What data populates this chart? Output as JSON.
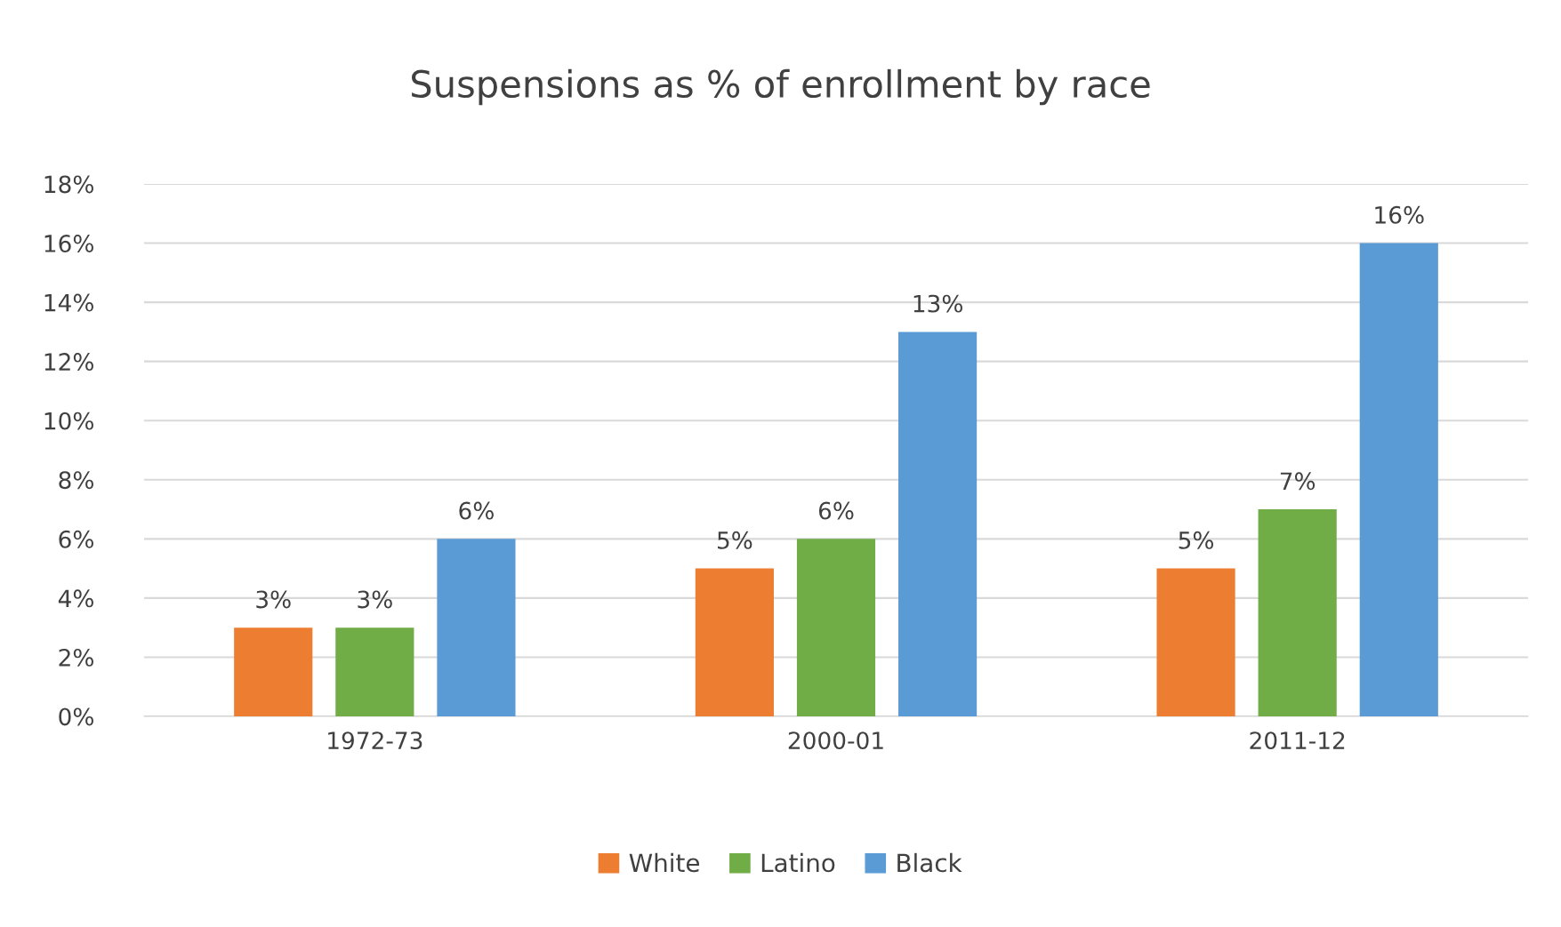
{
  "chart_data": {
    "type": "bar",
    "title": "Suspensions as % of enrollment by race",
    "categories": [
      "1972-73",
      "2000-01",
      "2011-12"
    ],
    "series": [
      {
        "name": "White",
        "color": "#ed7d31",
        "values": [
          3,
          5,
          5
        ],
        "value_labels": [
          "3%",
          "5%",
          "5%"
        ]
      },
      {
        "name": "Latino",
        "color": "#70ad47",
        "values": [
          3,
          6,
          7
        ],
        "value_labels": [
          "3%",
          "6%",
          "7%"
        ]
      },
      {
        "name": "Black",
        "color": "#5b9bd5",
        "values": [
          6,
          13,
          16
        ],
        "value_labels": [
          "6%",
          "13%",
          "16%"
        ]
      }
    ],
    "ylim": [
      0,
      18
    ],
    "yticks": [
      {
        "value": 0,
        "label": "0%"
      },
      {
        "value": 2,
        "label": "2%"
      },
      {
        "value": 4,
        "label": "4%"
      },
      {
        "value": 6,
        "label": "6%"
      },
      {
        "value": 8,
        "label": "8%"
      },
      {
        "value": 10,
        "label": "10%"
      },
      {
        "value": 12,
        "label": "12%"
      },
      {
        "value": 14,
        "label": "14%"
      },
      {
        "value": 16,
        "label": "16%"
      },
      {
        "value": 18,
        "label": "18%"
      }
    ],
    "grid": "y",
    "legend": "bottom"
  }
}
